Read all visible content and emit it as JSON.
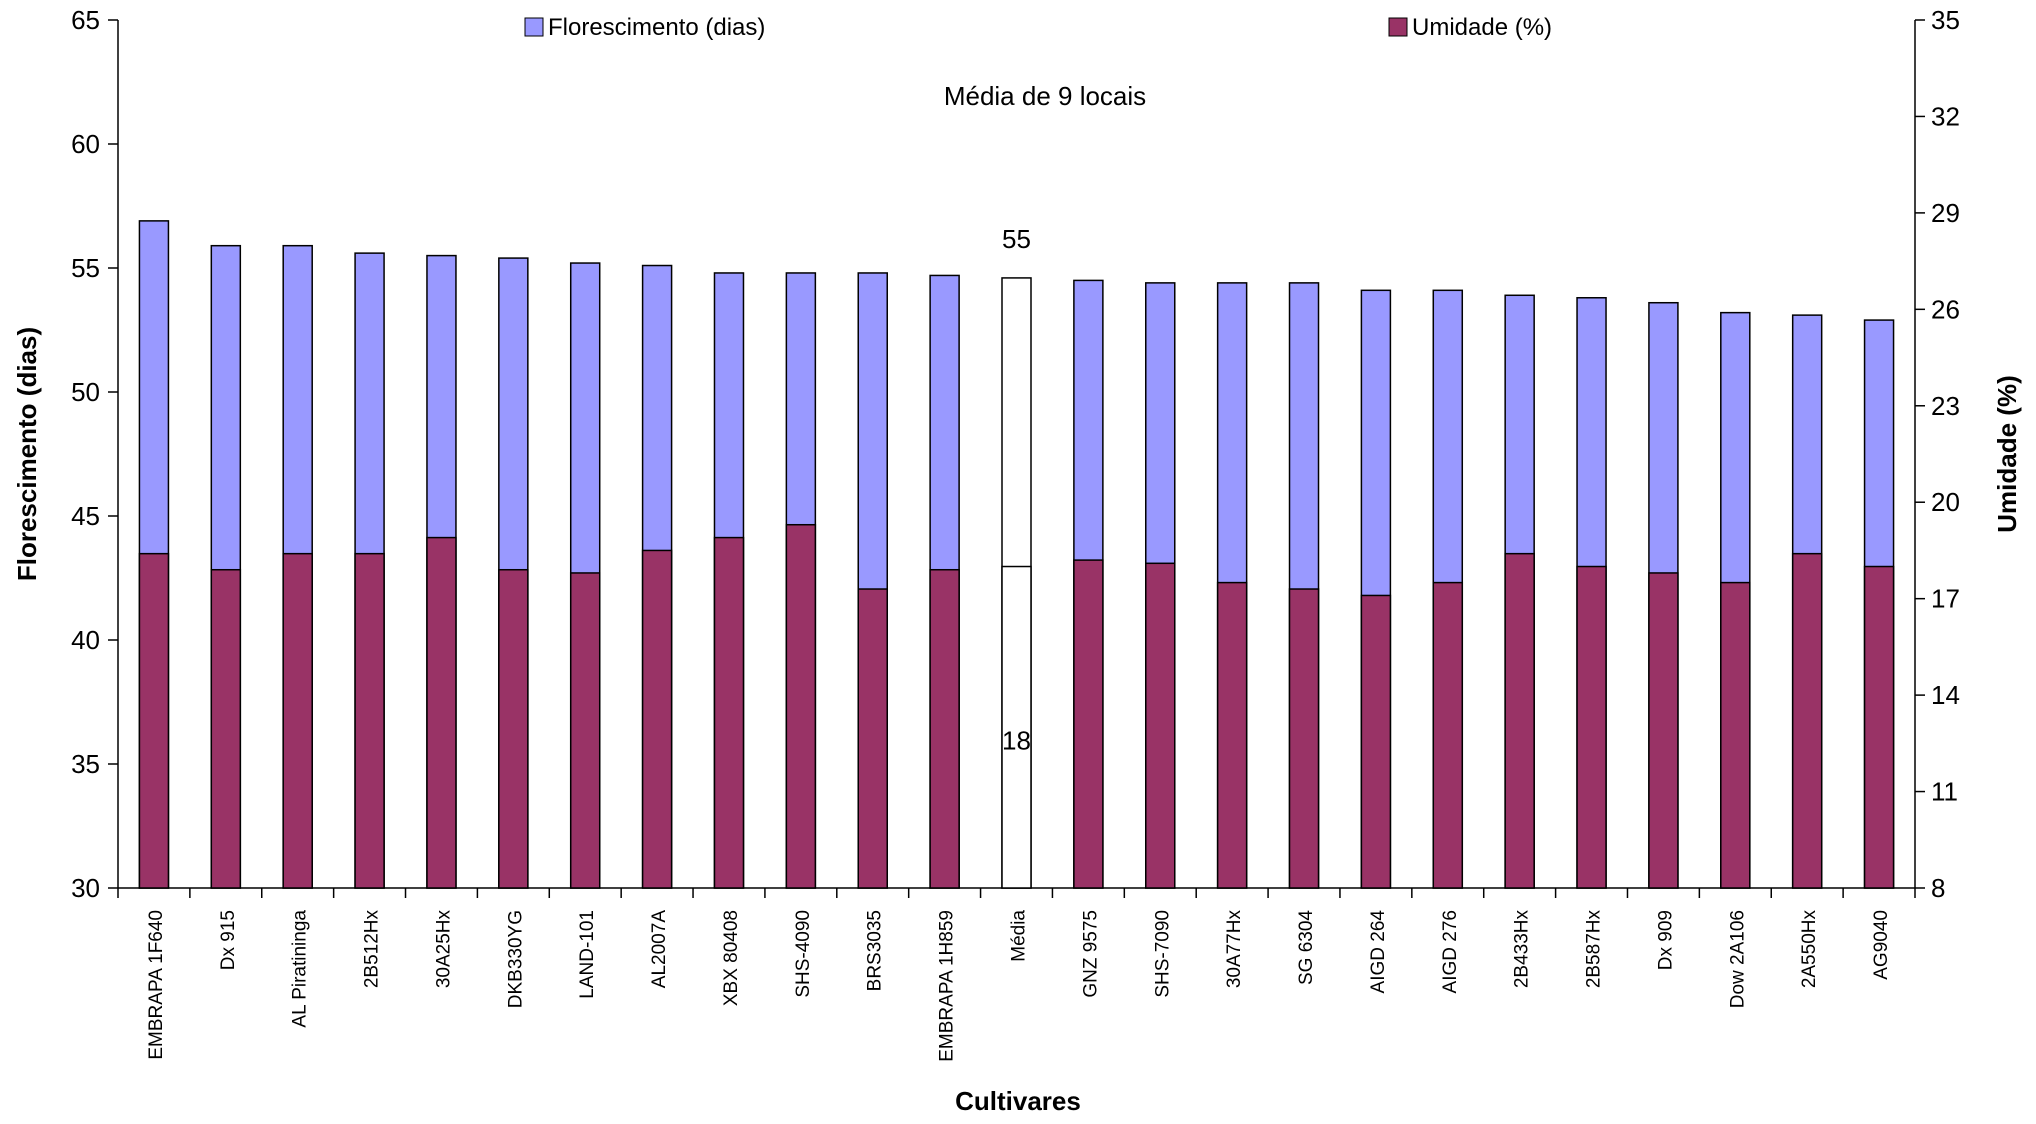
{
  "chart_data": {
    "type": "bar",
    "subtitle": "Média de 9 locais",
    "xlabel": "Cultivares",
    "ylabel_left": "Florescimento (dias)",
    "ylabel_right": "Umidade (%)",
    "ylim_left": [
      30,
      65
    ],
    "yticks_left": [
      30,
      35,
      40,
      45,
      50,
      55,
      60,
      65
    ],
    "ylim_right": [
      8,
      35
    ],
    "yticks_right": [
      8,
      11,
      14,
      17,
      20,
      23,
      26,
      29,
      32,
      35
    ],
    "categories": [
      "EMBRAPA 1F640",
      "Dx 915",
      "AL Piratininga",
      "2B512Hx",
      "30A25Hx",
      "DKB330YG",
      "LAND-101",
      "AL2007A",
      "XBX 80408",
      "SHS-4090",
      "BRS3035",
      "EMBRAPA 1H859",
      "Média",
      "GNZ 9575",
      "SHS-7090",
      "30A77Hx",
      "SG 6304",
      "AIGD 264",
      "AIGD 276",
      "2B433Hx",
      "2B587Hx",
      "Dx 909",
      "Dow 2A106",
      "2A550Hx",
      "AG9040"
    ],
    "series": [
      {
        "name": "Florescimento (dias)",
        "axis": "left",
        "color": "#9999ff",
        "values": [
          56.9,
          55.9,
          55.9,
          55.6,
          55.5,
          55.4,
          55.2,
          55.1,
          54.8,
          54.8,
          54.8,
          54.7,
          54.6,
          54.5,
          54.4,
          54.4,
          54.4,
          54.1,
          54.1,
          53.9,
          53.8,
          53.6,
          53.2,
          53.1,
          52.9
        ]
      },
      {
        "name": "Umidade (%)",
        "axis": "right",
        "color": "#993366",
        "values": [
          18.4,
          17.9,
          18.4,
          18.4,
          18.9,
          17.9,
          17.8,
          18.5,
          18.9,
          19.3,
          17.3,
          17.9,
          18.0,
          18.2,
          18.1,
          17.5,
          17.3,
          17.1,
          17.5,
          18.4,
          18.0,
          17.8,
          17.5,
          18.4,
          18.0
        ]
      }
    ],
    "highlight": {
      "category": "Média",
      "color": "#ffffff",
      "label_top": "55",
      "label_bottom": "18"
    },
    "legend": {
      "position": "top"
    }
  }
}
